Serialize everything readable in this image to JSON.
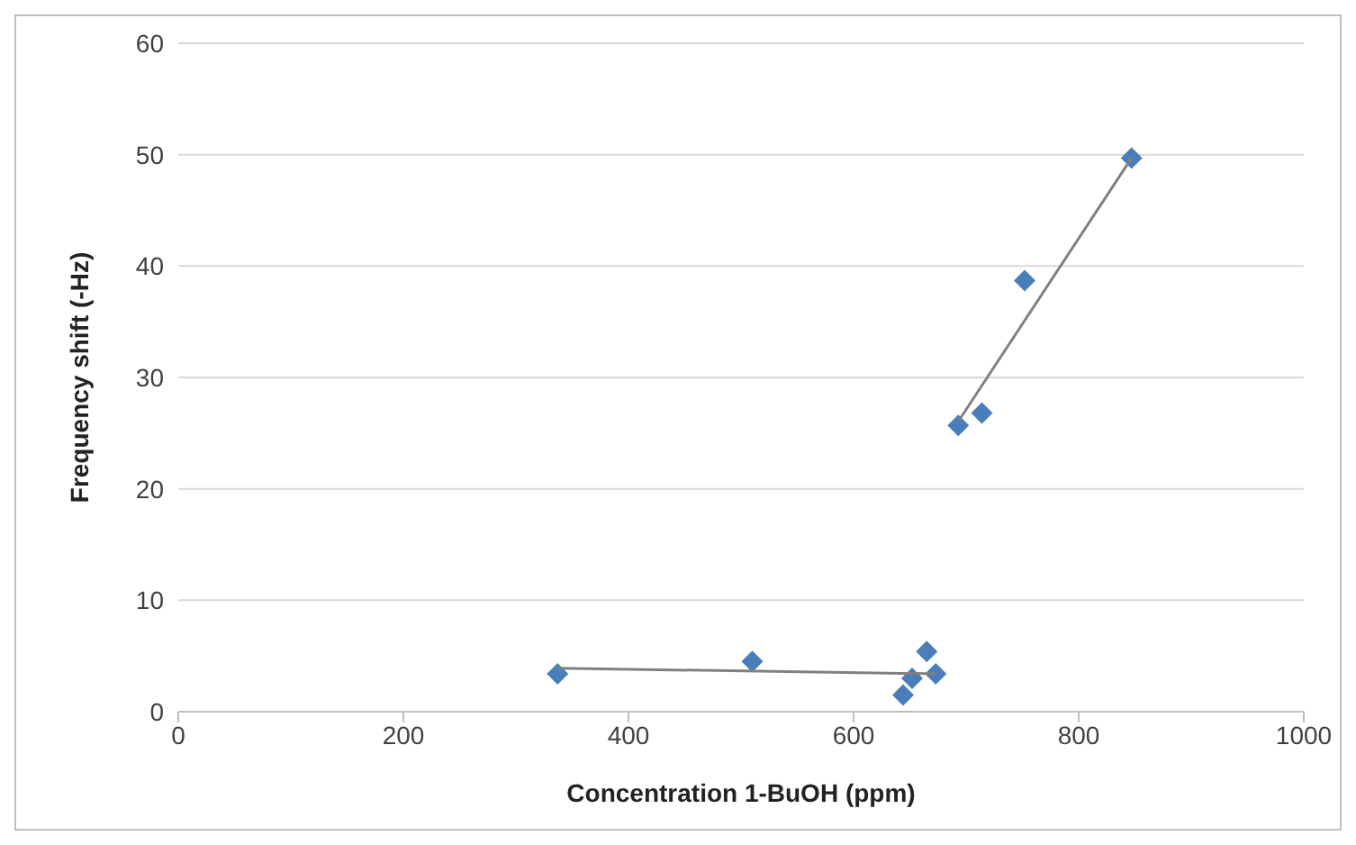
{
  "chart_data": {
    "type": "scatter",
    "xlabel": "Concentration 1-BuOH (ppm)",
    "ylabel": "Frequency shift (-Hz)",
    "xlim": [
      0,
      1000
    ],
    "xticks": [
      0,
      200,
      400,
      600,
      800,
      1000
    ],
    "ylim": [
      0,
      60
    ],
    "yticks": [
      0,
      10,
      20,
      30,
      40,
      50,
      60
    ],
    "grid": "y",
    "marker": "diamond",
    "series": [
      {
        "color": "#4a7ebb",
        "x": [
          337,
          510,
          644,
          652,
          665,
          673,
          693,
          714,
          752,
          847
        ],
        "values": [
          3.4,
          4.5,
          1.5,
          3.0,
          5.4,
          3.4,
          25.7,
          26.8,
          38.7,
          49.7
        ]
      },
      {
        "type": "line",
        "color": "#808080",
        "marker": "none",
        "x": [
          337,
          673
        ],
        "values": [
          3.9,
          3.4
        ]
      },
      {
        "type": "line",
        "color": "#808080",
        "marker": "none",
        "x": [
          694,
          847
        ],
        "values": [
          26.2,
          49.7
        ]
      }
    ]
  }
}
